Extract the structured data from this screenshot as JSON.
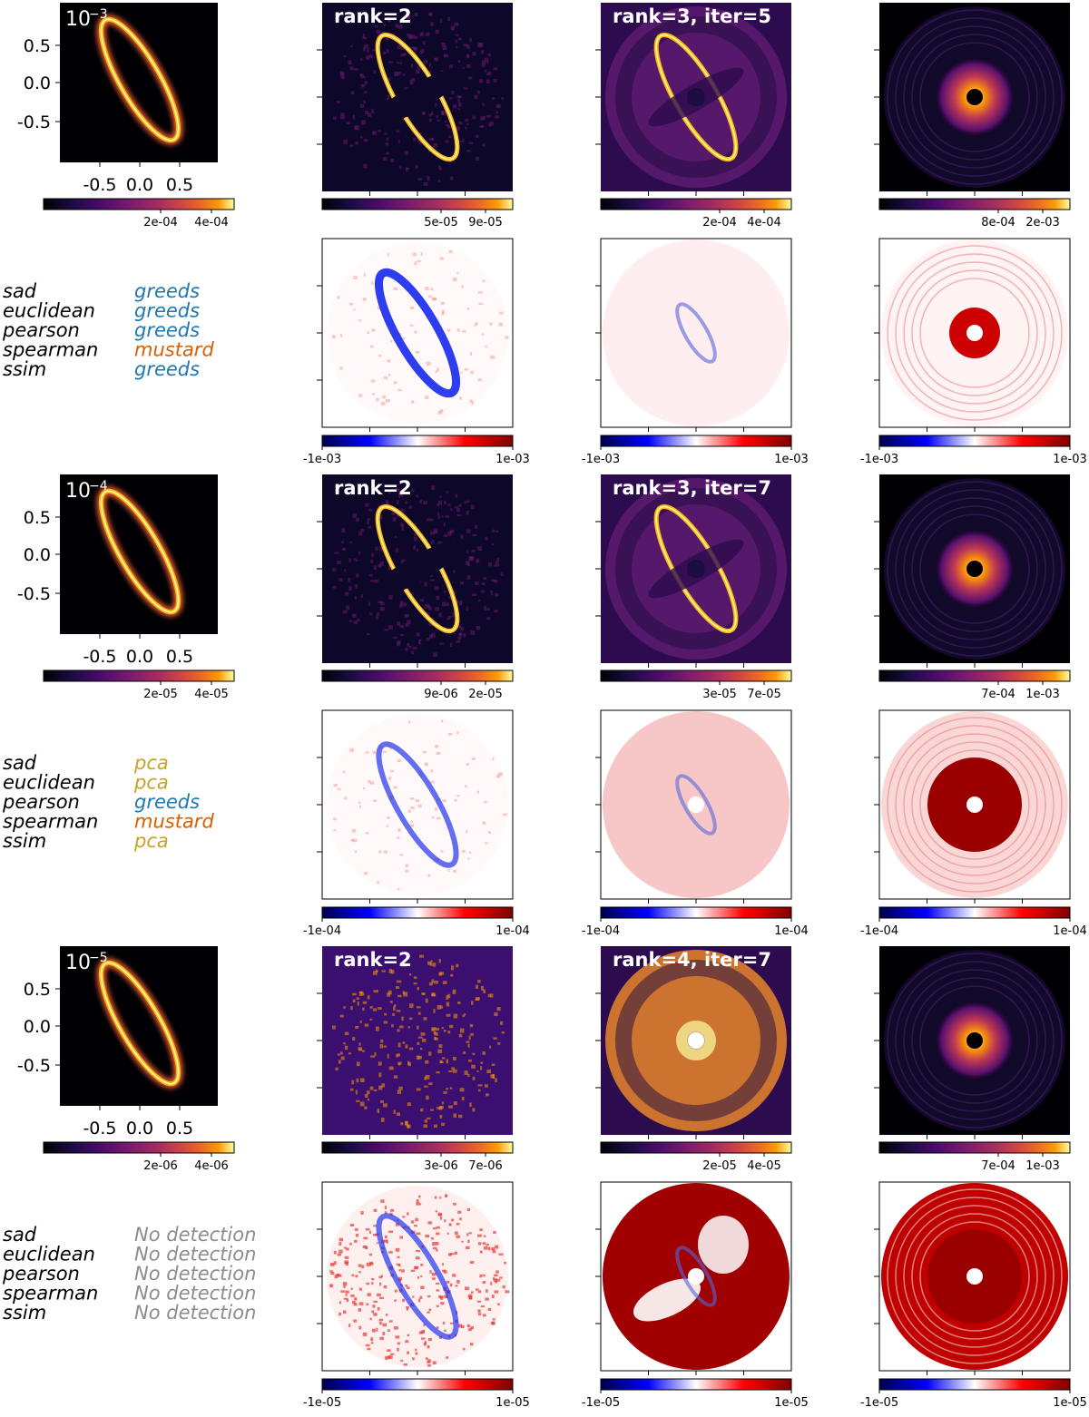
{
  "figure": {
    "rows": [
      {
        "contrast_label": "10",
        "contrast_exp": "−3",
        "image_titles": [
          "rank=2",
          "rank=3, iter=5",
          ""
        ],
        "model_cbar_ticks": [
          "2e-04",
          "4e-04"
        ],
        "recon_cbar_ticks": [
          [
            "5e-05",
            "9e-05"
          ],
          [
            "2e-04",
            "4e-04"
          ],
          [
            "8e-04",
            "2e-03"
          ]
        ],
        "residual_cbar_ticks": [
          "-1e-03",
          "1e-03"
        ],
        "metrics": [
          {
            "name": "sad",
            "winner": "greeds",
            "color": "#1f77b4"
          },
          {
            "name": "euclidean",
            "winner": "greeds",
            "color": "#1f77b4"
          },
          {
            "name": "pearson",
            "winner": "greeds",
            "color": "#1f77b4"
          },
          {
            "name": "spearman",
            "winner": "mustard",
            "color": "#d95f02"
          },
          {
            "name": "ssim",
            "winner": "greeds",
            "color": "#1f77b4"
          }
        ]
      },
      {
        "contrast_label": "10",
        "contrast_exp": "−4",
        "image_titles": [
          "rank=2",
          "rank=3, iter=7",
          ""
        ],
        "model_cbar_ticks": [
          "2e-05",
          "4e-05"
        ],
        "recon_cbar_ticks": [
          [
            "9e-06",
            "2e-05"
          ],
          [
            "3e-05",
            "7e-05"
          ],
          [
            "7e-04",
            "1e-03"
          ]
        ],
        "residual_cbar_ticks": [
          "-1e-04",
          "1e-04"
        ],
        "metrics": [
          {
            "name": "sad",
            "winner": "pca",
            "color": "#c9a227"
          },
          {
            "name": "euclidean",
            "winner": "pca",
            "color": "#c9a227"
          },
          {
            "name": "pearson",
            "winner": "greeds",
            "color": "#1f77b4"
          },
          {
            "name": "spearman",
            "winner": "mustard",
            "color": "#d95f02"
          },
          {
            "name": "ssim",
            "winner": "pca",
            "color": "#c9a227"
          }
        ]
      },
      {
        "contrast_label": "10",
        "contrast_exp": "−5",
        "image_titles": [
          "rank=2",
          "rank=4, iter=7",
          ""
        ],
        "model_cbar_ticks": [
          "2e-06",
          "4e-06"
        ],
        "recon_cbar_ticks": [
          [
            "3e-06",
            "7e-06"
          ],
          [
            "2e-05",
            "4e-05"
          ],
          [
            "7e-04",
            "1e-03"
          ]
        ],
        "residual_cbar_ticks": [
          "-1e-05",
          "1e-05"
        ],
        "metrics": [
          {
            "name": "sad",
            "winner": "No detection",
            "color": "#8c8c8c"
          },
          {
            "name": "euclidean",
            "winner": "No detection",
            "color": "#8c8c8c"
          },
          {
            "name": "pearson",
            "winner": "No detection",
            "color": "#8c8c8c"
          },
          {
            "name": "spearman",
            "winner": "No detection",
            "color": "#8c8c8c"
          },
          {
            "name": "ssim",
            "winner": "No detection",
            "color": "#8c8c8c"
          }
        ]
      }
    ],
    "model_y_ticks": [
      "0.5",
      "0.0",
      "-0.5"
    ],
    "model_x_ticks": [
      "-0.5",
      "0.0",
      "0.5"
    ],
    "colormaps": {
      "inferno": "inferno",
      "residual": "seismic"
    }
  },
  "chart_data": {
    "type": "heatmap",
    "panels": "3 contrast levels x (model disk, rank-2 reconstruction, rank/iter reconstruction, third reconstruction) with residual maps below each reconstruction",
    "contrasts": [
      "1e-3",
      "1e-4",
      "1e-5"
    ],
    "model_axis_ticks": {
      "x": [
        -0.5,
        0.0,
        0.5
      ],
      "y": [
        0.5,
        0.0,
        -0.5
      ]
    },
    "colorbar_ranges": {
      "model": [
        [
          0,
          0.0004
        ],
        [
          0,
          4e-05
        ],
        [
          0,
          4e-06
        ]
      ],
      "residual": [
        [
          -0.001,
          0.001
        ],
        [
          -0.0001,
          0.0001
        ],
        [
          -1e-05,
          1e-05
        ]
      ]
    }
  }
}
